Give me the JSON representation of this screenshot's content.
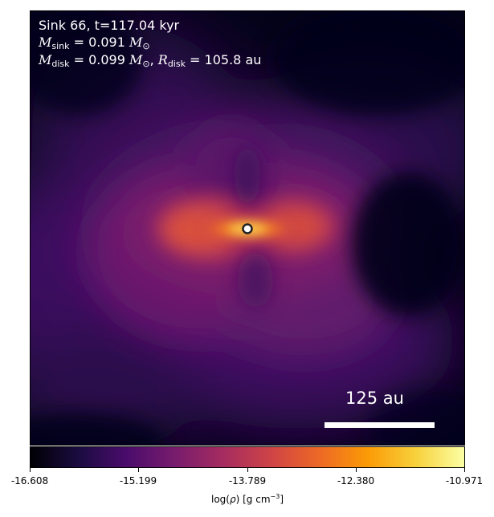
{
  "chart_data": {
    "type": "heatmap",
    "title": "Sink 66, t=117.04 kyr",
    "annotations": {
      "m_sink_symbol": "M",
      "m_sink_sub": "sink",
      "m_sink_value": " = 0.091 ",
      "m_disk_symbol": "M",
      "m_disk_sub": "disk",
      "m_disk_value": " = 0.099 ",
      "msun_symbol": "M",
      "msun_sub": "⊙",
      "r_disk_symbol": "R",
      "r_disk_sub": "disk",
      "r_disk_value": " = 105.8 au"
    },
    "scale_bar_label": "125 au",
    "colorbar": {
      "label_prefix": "log(",
      "label_symbol": "ρ",
      "label_suffix": ") [g cm",
      "label_exponent": "−3",
      "label_end": "]",
      "ticks": [
        "-16.608",
        "-15.199",
        "-13.789",
        "-12.380",
        "-10.971"
      ],
      "range": [
        -16.608,
        -10.971
      ],
      "colormap": "inferno"
    },
    "sink_marker": {
      "color": "#ffffff",
      "edge_color": "#222222"
    },
    "colormap_stops": [
      "#000004",
      "#1b0c41",
      "#4a0c6b",
      "#781c6d",
      "#a52c60",
      "#cf4446",
      "#ed6925",
      "#fb9b06",
      "#f7d13d",
      "#fcffa4"
    ]
  }
}
